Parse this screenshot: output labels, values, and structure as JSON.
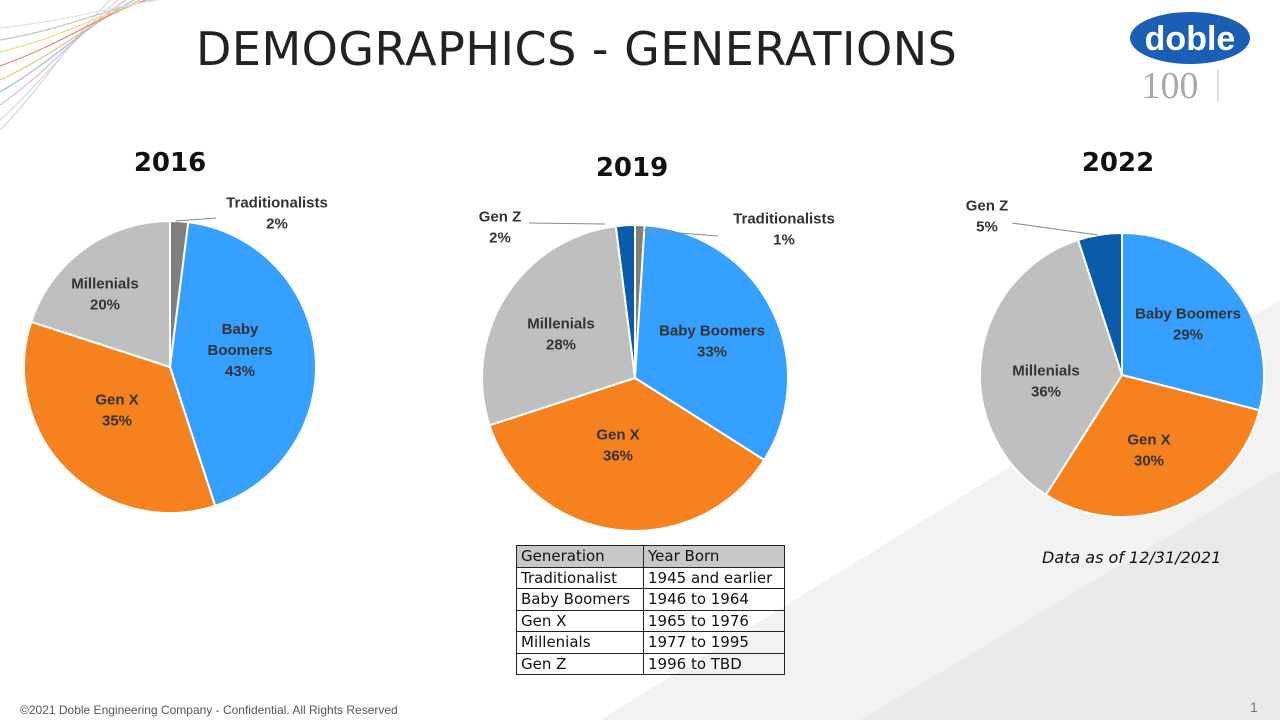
{
  "title": "DEMOGRAPHICS - GENERATIONS",
  "logo": {
    "text": "doble",
    "sub": "100"
  },
  "colors": {
    "Traditionalists": "#7f7f7f",
    "Baby Boomers": "#35a0ff",
    "Gen X": "#f5821f",
    "Millenials": "#bfbfbf",
    "Gen Z": "#0a5ba8"
  },
  "chart_data": [
    {
      "type": "pie",
      "title": "2016",
      "slices": [
        {
          "name": "Traditionalists",
          "value": 2
        },
        {
          "name": "Baby Boomers",
          "value": 43
        },
        {
          "name": "Gen X",
          "value": 35
        },
        {
          "name": "Millenials",
          "value": 20
        }
      ]
    },
    {
      "type": "pie",
      "title": "2019",
      "slices": [
        {
          "name": "Traditionalists",
          "value": 1
        },
        {
          "name": "Baby Boomers",
          "value": 33
        },
        {
          "name": "Gen X",
          "value": 36
        },
        {
          "name": "Millenials",
          "value": 28
        },
        {
          "name": "Gen Z",
          "value": 2
        }
      ]
    },
    {
      "type": "pie",
      "title": "2022",
      "slices": [
        {
          "name": "Baby Boomers",
          "value": 29
        },
        {
          "name": "Gen X",
          "value": 30
        },
        {
          "name": "Millenials",
          "value": 36
        },
        {
          "name": "Gen Z",
          "value": 5
        }
      ]
    }
  ],
  "table": {
    "headers": [
      "Generation",
      "Year Born"
    ],
    "rows": [
      [
        "Traditionalist",
        "1945 and earlier"
      ],
      [
        "Baby Boomers",
        "1946 to 1964"
      ],
      [
        "Gen X",
        "1965 to 1976"
      ],
      [
        "Millenials",
        "1977 to 1995"
      ],
      [
        "Gen Z",
        "1996 to TBD"
      ]
    ]
  },
  "as_of": "Data as of 12/31/2021",
  "footer": "©2021 Doble Engineering Company  - Confidential.  All Rights Reserved",
  "page_number": "1"
}
